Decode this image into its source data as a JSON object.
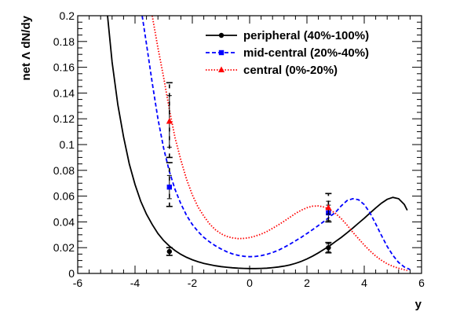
{
  "chart_data": {
    "type": "line",
    "title": "",
    "xlabel": "y",
    "ylabel": "net Λ dN/dy",
    "xlim": [
      -6,
      6
    ],
    "ylim": [
      0,
      0.2
    ],
    "x_ticks": [
      -6,
      -4,
      -2,
      0,
      2,
      4,
      6
    ],
    "x_tick_labels": [
      "-6",
      "-4",
      "-2",
      "0",
      "2",
      "4",
      "6"
    ],
    "y_ticks": [
      0,
      0.02,
      0.04,
      0.06,
      0.08,
      0.1,
      0.12,
      0.14,
      0.16,
      0.18,
      0.2
    ],
    "y_tick_labels": [
      "0",
      "0.02",
      "0.04",
      "0.06",
      "0.08",
      "0.1",
      "0.12",
      "0.14",
      "0.16",
      "0.18",
      "0.2"
    ],
    "grid": false,
    "legend_position": "top-right",
    "series": [
      {
        "name": "peripheral (40%-100%)",
        "color": "#000000",
        "line_style": "solid",
        "marker": "circle",
        "curve": {
          "x": [
            -4.96,
            -4.8,
            -4.6,
            -4.4,
            -4.2,
            -4.0,
            -3.8,
            -3.6,
            -3.4,
            -3.2,
            -3.0,
            -2.8,
            -2.6,
            -2.4,
            -2.2,
            -2.0,
            -1.8,
            -1.6,
            -1.4,
            -1.2,
            -1.0,
            -0.8,
            -0.6,
            -0.4,
            -0.2,
            0.0,
            0.2,
            0.4,
            0.6,
            0.8,
            1.0,
            1.2,
            1.4,
            1.6,
            1.8,
            2.0,
            2.2,
            2.4,
            2.6,
            2.8,
            3.0,
            3.2,
            3.4,
            3.6,
            3.8,
            4.0,
            4.2,
            4.4,
            4.6,
            4.8,
            5.0,
            5.2,
            5.4,
            5.5
          ],
          "y": [
            0.2,
            0.164,
            0.131,
            0.106,
            0.085,
            0.069,
            0.056,
            0.046,
            0.038,
            0.031,
            0.0255,
            0.0212,
            0.0177,
            0.0148,
            0.0125,
            0.0106,
            0.0091,
            0.0078,
            0.0068,
            0.006,
            0.0053,
            0.0048,
            0.0044,
            0.0041,
            0.0039,
            0.0038,
            0.0038,
            0.0039,
            0.0041,
            0.0045,
            0.005,
            0.0057,
            0.0066,
            0.0078,
            0.0093,
            0.0112,
            0.0135,
            0.016,
            0.0188,
            0.0215,
            0.0248,
            0.028,
            0.0315,
            0.0352,
            0.039,
            0.0428,
            0.0468,
            0.0508,
            0.0545,
            0.0575,
            0.059,
            0.058,
            0.0535,
            0.049
          ]
        },
        "points": [
          {
            "x": -2.8,
            "y": 0.017,
            "err": 0.003
          },
          {
            "x": 2.75,
            "y": 0.02,
            "err": 0.003
          }
        ]
      },
      {
        "name": "mid-central (20%-40%)",
        "color": "#0000ff",
        "line_style": "dashed",
        "marker": "square",
        "curve": {
          "x": [
            -3.75,
            -3.6,
            -3.4,
            -3.2,
            -3.0,
            -2.8,
            -2.6,
            -2.4,
            -2.2,
            -2.0,
            -1.8,
            -1.6,
            -1.4,
            -1.2,
            -1.0,
            -0.8,
            -0.6,
            -0.4,
            -0.2,
            0.0,
            0.2,
            0.4,
            0.6,
            0.8,
            1.0,
            1.2,
            1.4,
            1.6,
            1.8,
            2.0,
            2.2,
            2.4,
            2.6,
            2.8,
            3.0,
            3.2,
            3.4,
            3.6,
            3.8,
            4.0,
            4.2,
            4.4,
            4.6,
            4.8,
            5.0,
            5.2,
            5.4,
            5.6
          ],
          "y": [
            0.2,
            0.178,
            0.148,
            0.12,
            0.097,
            0.079,
            0.065,
            0.054,
            0.045,
            0.038,
            0.0325,
            0.028,
            0.0245,
            0.0215,
            0.019,
            0.0168,
            0.0152,
            0.014,
            0.0133,
            0.013,
            0.0132,
            0.0138,
            0.0148,
            0.0162,
            0.018,
            0.0202,
            0.0226,
            0.0253,
            0.028,
            0.031,
            0.034,
            0.0372,
            0.0405,
            0.044,
            0.0475,
            0.0525,
            0.0565,
            0.058,
            0.0572,
            0.0535,
            0.047,
            0.0385,
            0.0295,
            0.021,
            0.014,
            0.0085,
            0.005,
            0.003
          ]
        },
        "points": [
          {
            "x": -2.8,
            "y": 0.067,
            "err": 0.009
          },
          {
            "x": 2.75,
            "y": 0.047,
            "err": 0.006
          }
        ]
      },
      {
        "name": "central (0%-20%)",
        "color": "#ff0000",
        "line_style": "dotted",
        "marker": "triangle",
        "curve": {
          "x": [
            -3.4,
            -3.2,
            -3.0,
            -2.8,
            -2.6,
            -2.4,
            -2.2,
            -2.0,
            -1.8,
            -1.6,
            -1.4,
            -1.2,
            -1.0,
            -0.8,
            -0.6,
            -0.4,
            -0.2,
            0.0,
            0.2,
            0.4,
            0.6,
            0.8,
            1.0,
            1.2,
            1.4,
            1.6,
            1.8,
            2.0,
            2.2,
            2.4,
            2.6,
            2.8,
            3.0,
            3.2,
            3.4,
            3.6,
            3.8,
            4.0,
            4.2,
            4.4,
            4.6,
            4.8,
            5.0,
            5.2,
            5.4,
            5.5
          ],
          "y": [
            0.2,
            0.175,
            0.152,
            0.127,
            0.105,
            0.088,
            0.073,
            0.061,
            0.0515,
            0.0445,
            0.0385,
            0.034,
            0.0308,
            0.0288,
            0.0276,
            0.027,
            0.0272,
            0.0278,
            0.029,
            0.0305,
            0.0325,
            0.035,
            0.0376,
            0.0405,
            0.0435,
            0.0465,
            0.049,
            0.051,
            0.0522,
            0.0524,
            0.0515,
            0.0495,
            0.0465,
            0.0425,
            0.0375,
            0.032,
            0.027,
            0.022,
            0.0175,
            0.0135,
            0.0102,
            0.0075,
            0.0055,
            0.004,
            0.0028,
            0.0022
          ]
        },
        "points": [
          {
            "x": -2.8,
            "y": 0.118,
            "err": 0.02
          },
          {
            "x": 2.75,
            "y": 0.051,
            "err": 0.005
          }
        ]
      }
    ],
    "systematic_brackets": [
      {
        "x": -2.8,
        "low": 0.014,
        "high": 0.02
      },
      {
        "x": -2.8,
        "low": 0.052,
        "high": 0.086
      },
      {
        "x": -2.8,
        "low": 0.09,
        "high": 0.148
      },
      {
        "x": 2.75,
        "low": 0.016,
        "high": 0.024
      },
      {
        "x": 2.75,
        "low": 0.04,
        "high": 0.062
      }
    ]
  }
}
